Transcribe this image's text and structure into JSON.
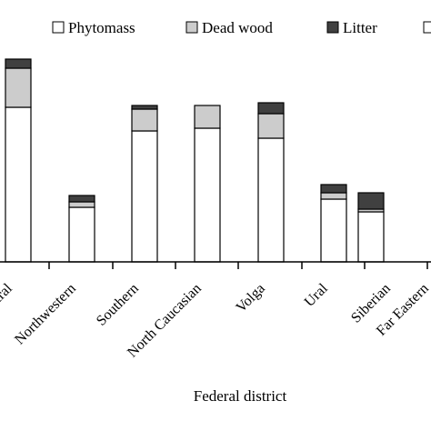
{
  "chart_data": {
    "type": "bar",
    "stacked": true,
    "xlabel": "Federal district",
    "categories": [
      "Central",
      "Northwestern",
      "Southern",
      "North Caucasian",
      "Volga",
      "Ural",
      "Siberian",
      "Far Eastern"
    ],
    "series": [
      {
        "name": "Phytomass",
        "color": "#ffffff",
        "values": [
          8.5,
          3.0,
          7.2,
          7.35,
          6.8,
          3.45,
          2.75,
          null
        ]
      },
      {
        "name": "Dead wood",
        "color": "#cccccc",
        "values": [
          2.15,
          0.3,
          1.2,
          1.25,
          1.35,
          0.35,
          0.15,
          null
        ]
      },
      {
        "name": "Litter",
        "color": "#404040",
        "values": [
          0.5,
          0.35,
          0.2,
          0.0,
          0.6,
          0.45,
          0.9,
          null
        ]
      },
      {
        "name": "",
        "color": "#ffffff",
        "values": [
          null,
          null,
          null,
          null,
          null,
          null,
          null,
          null
        ]
      }
    ],
    "legend_position": "top",
    "grid": false
  }
}
